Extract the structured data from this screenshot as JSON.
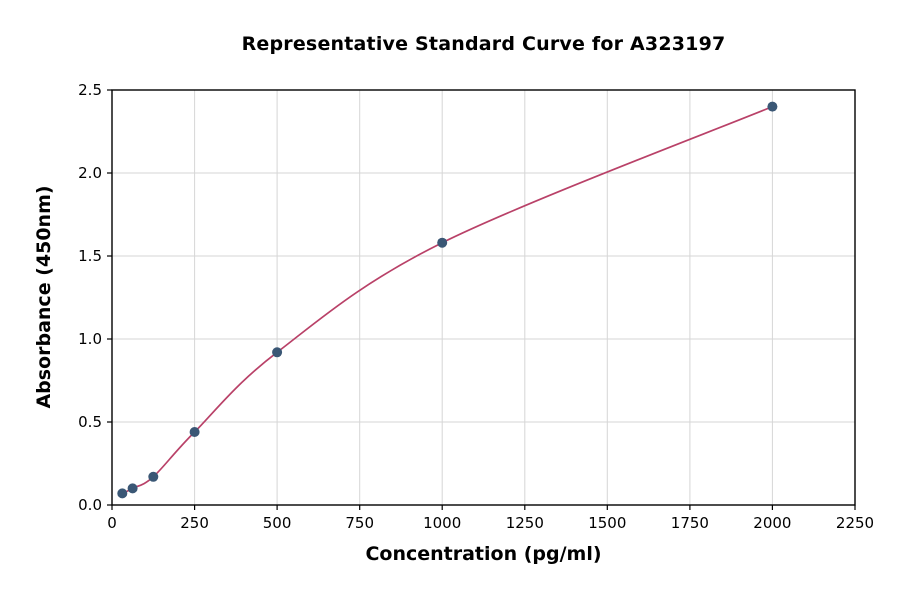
{
  "chart_data": {
    "type": "line",
    "title": "Representative Standard Curve for A323197",
    "xlabel": "Concentration (pg/ml)",
    "ylabel": "Absorbance (450nm)",
    "x": [
      31.25,
      62.5,
      125,
      250,
      500,
      1000,
      2000
    ],
    "y": [
      0.07,
      0.1,
      0.17,
      0.44,
      0.92,
      1.58,
      2.4
    ],
    "xlim": [
      0,
      2250
    ],
    "ylim": [
      0,
      2.5
    ],
    "xticks": [
      0,
      250,
      500,
      750,
      1000,
      1250,
      1500,
      1750,
      2000,
      2250
    ],
    "xtick_labels": [
      "0",
      "250",
      "500",
      "750",
      "1000",
      "1250",
      "1500",
      "1750",
      "2000",
      "2250"
    ],
    "yticks": [
      0,
      0.5,
      1.0,
      1.5,
      2.0,
      2.5
    ],
    "ytick_labels": [
      "0.0",
      "0.5",
      "1.0",
      "1.5",
      "2.0",
      "2.5"
    ],
    "grid": true,
    "legend_position": "none",
    "line_color": "#b94168",
    "point_color": "#3a5775",
    "grid_color": "#d6d6d6",
    "spine_color": "#000000"
  }
}
